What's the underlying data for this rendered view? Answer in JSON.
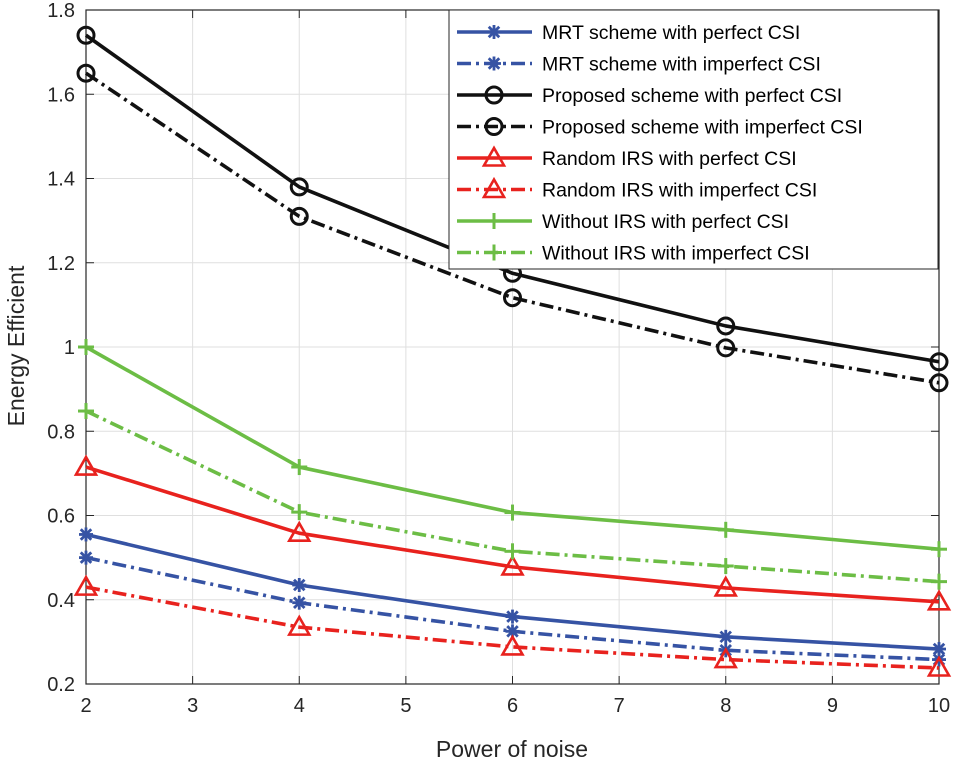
{
  "chart_data": {
    "type": "line",
    "title": "",
    "xlabel": "Power of noise",
    "ylabel": "Energy Efficient",
    "xlim": [
      2,
      10
    ],
    "ylim": [
      0.2,
      1.8
    ],
    "xticks": [
      2,
      3,
      4,
      5,
      6,
      7,
      8,
      9,
      10
    ],
    "yticks": [
      0.2,
      0.4,
      0.6,
      0.8,
      1,
      1.2,
      1.4,
      1.6,
      1.8
    ],
    "xtick_labels": [
      "2",
      "3",
      "4",
      "5",
      "6",
      "7",
      "8",
      "9",
      "10"
    ],
    "ytick_labels": [
      "0.2",
      "0.4",
      "0.6",
      "0.8",
      "1",
      "1.2",
      "1.4",
      "1.6",
      "1.8"
    ],
    "grid": true,
    "legend_position": "top-right",
    "x": [
      2,
      4,
      6,
      8,
      10
    ],
    "series": [
      {
        "name": "MRT scheme with perfect CSI",
        "values": [
          0.555,
          0.435,
          0.36,
          0.312,
          0.283
        ],
        "color": "#3653a4",
        "dash": "solid",
        "marker": "asterisk"
      },
      {
        "name": "MRT scheme with imperfect CSI",
        "values": [
          0.5,
          0.393,
          0.325,
          0.28,
          0.258
        ],
        "color": "#3653a4",
        "dash": "dashdot",
        "marker": "asterisk"
      },
      {
        "name": "Proposed scheme with perfect CSI",
        "values": [
          1.74,
          1.38,
          1.175,
          1.05,
          0.965
        ],
        "color": "#111111",
        "dash": "solid",
        "marker": "circle"
      },
      {
        "name": "Proposed scheme with imperfect CSI",
        "values": [
          1.65,
          1.31,
          1.117,
          0.998,
          0.915
        ],
        "color": "#111111",
        "dash": "dashdot",
        "marker": "circle"
      },
      {
        "name": "Random IRS with perfect CSI",
        "values": [
          0.715,
          0.558,
          0.478,
          0.428,
          0.395
        ],
        "color": "#e8221e",
        "dash": "solid",
        "marker": "triangle"
      },
      {
        "name": "Random IRS with imperfect CSI",
        "values": [
          0.43,
          0.335,
          0.288,
          0.258,
          0.238
        ],
        "color": "#e8221e",
        "dash": "dashdot",
        "marker": "triangle"
      },
      {
        "name": "Without IRS with perfect CSI",
        "values": [
          1.0,
          0.715,
          0.607,
          0.566,
          0.52
        ],
        "color": "#6cbd45",
        "dash": "solid",
        "marker": "plus"
      },
      {
        "name": "Without IRS with imperfect CSI",
        "values": [
          0.848,
          0.608,
          0.515,
          0.48,
          0.443
        ],
        "color": "#6cbd45",
        "dash": "dashdot",
        "marker": "plus"
      }
    ]
  }
}
